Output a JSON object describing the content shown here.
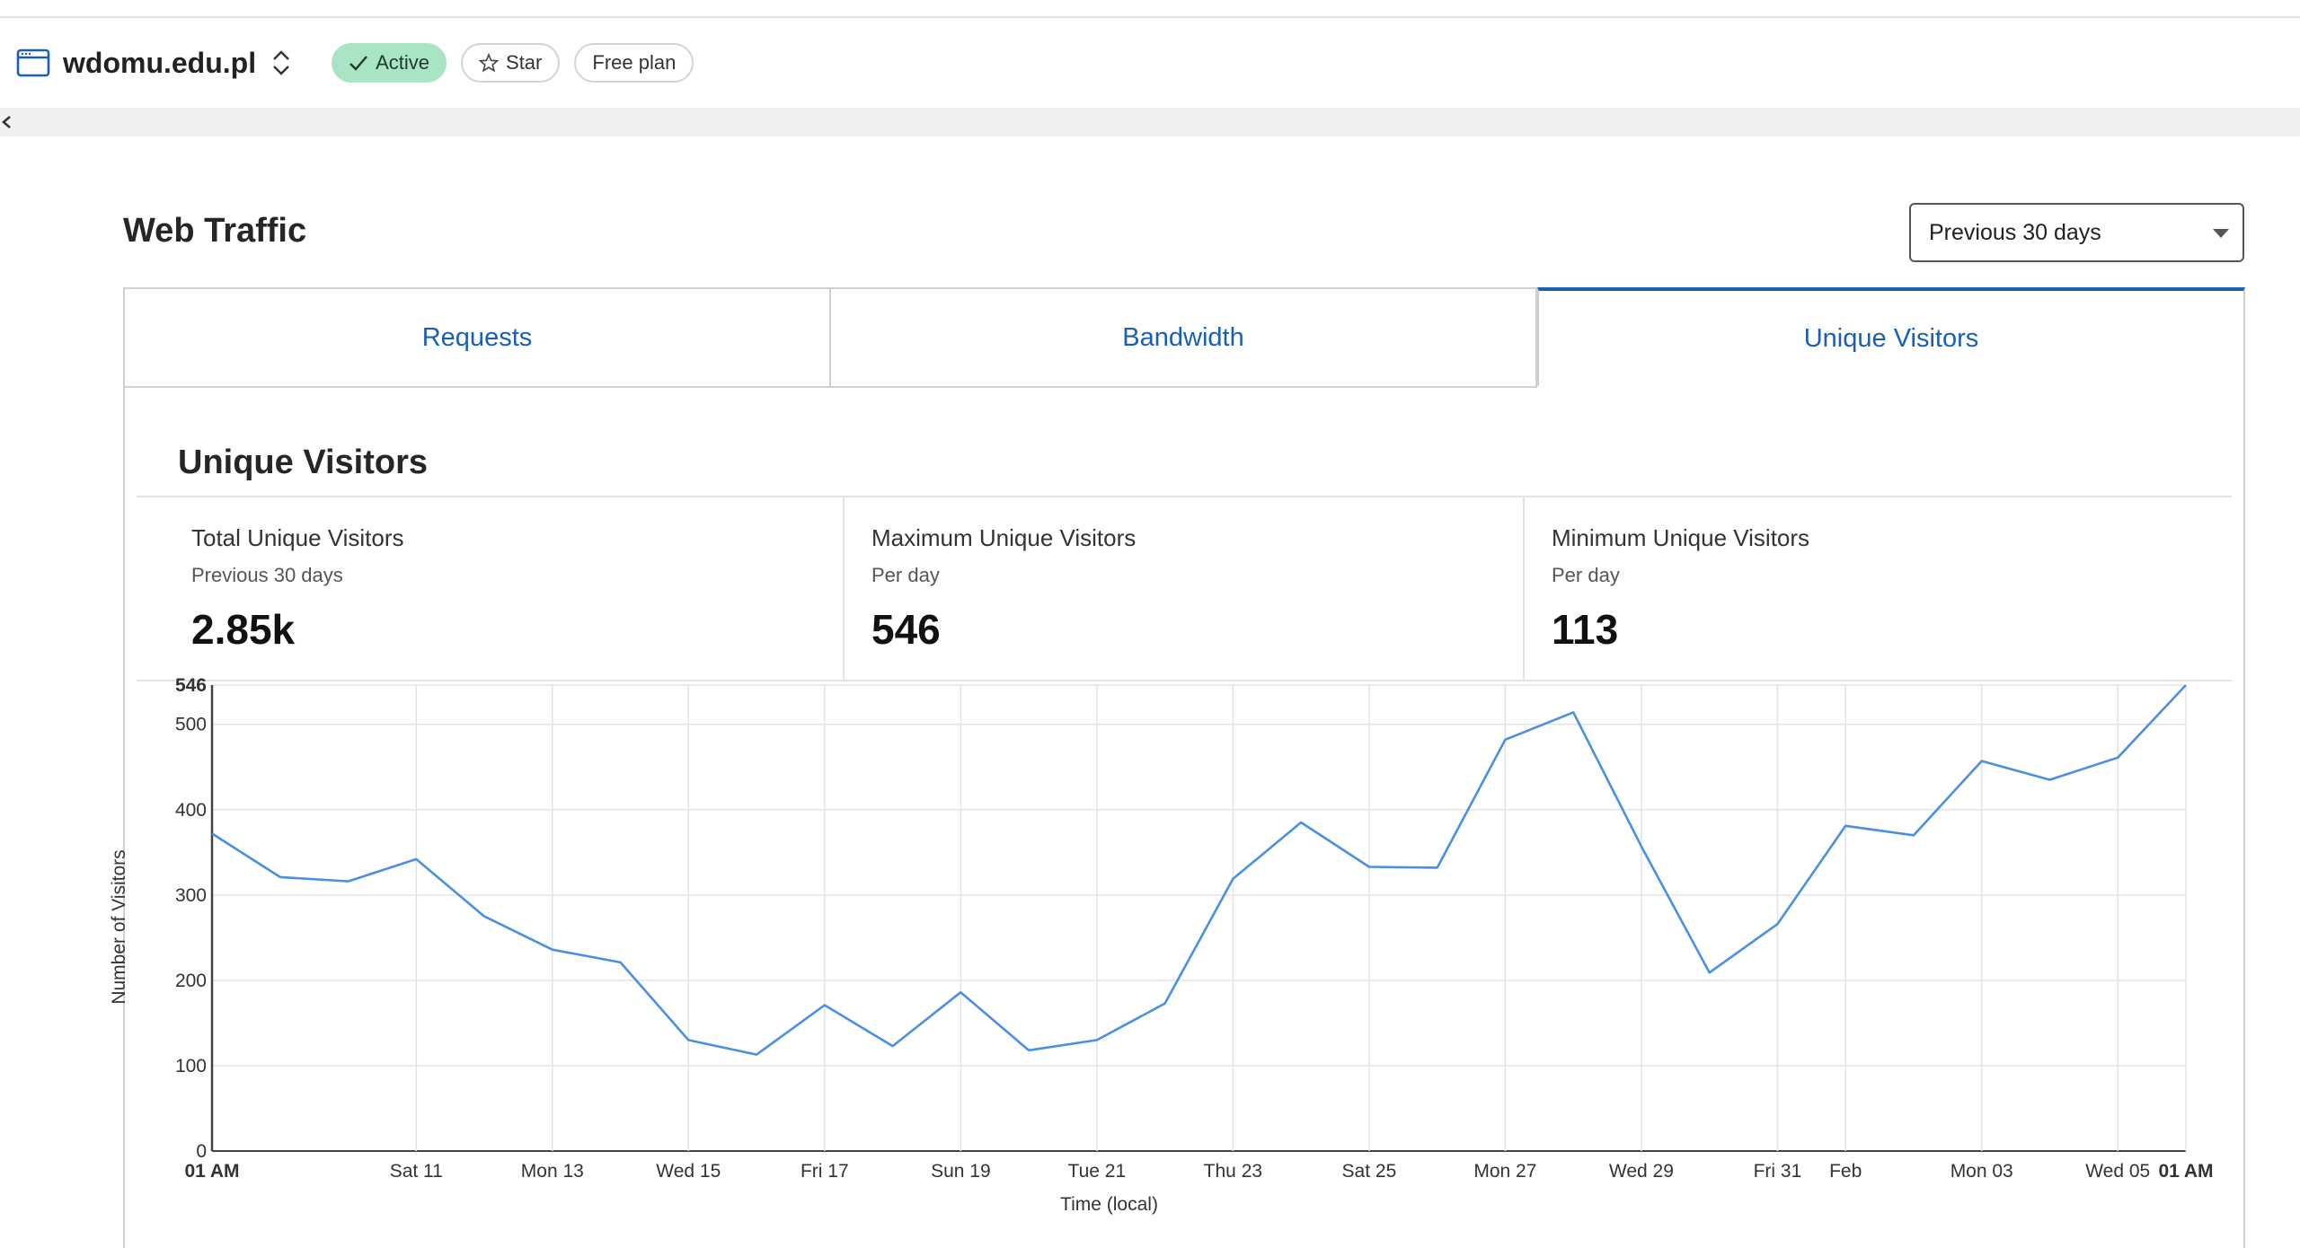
{
  "header": {
    "site_name": "wdomu.edu.pl",
    "status_label": "Active",
    "star_label": "Star",
    "plan_label": "Free plan"
  },
  "section": {
    "title": "Web Traffic",
    "range_select": "Previous 30 days"
  },
  "tabs": [
    {
      "label": "Requests",
      "active": false
    },
    {
      "label": "Bandwidth",
      "active": false
    },
    {
      "label": "Unique Visitors",
      "active": true
    }
  ],
  "panel": {
    "title": "Unique Visitors",
    "stats": [
      {
        "label": "Total Unique Visitors",
        "sub": "Previous 30 days",
        "value": "2.85k"
      },
      {
        "label": "Maximum Unique Visitors",
        "sub": "Per day",
        "value": "546"
      },
      {
        "label": "Minimum Unique Visitors",
        "sub": "Per day",
        "value": "113"
      }
    ]
  },
  "colors": {
    "accent": "#1a5fb4",
    "line": "#4a90e2",
    "active_pill": "#a9e4c4"
  },
  "icons": {
    "site": "browser-window-icon",
    "switcher": "chevron-up-down-icon",
    "active": "check-icon",
    "star": "star-icon",
    "collapse": "chevron-left-icon",
    "dropdown": "caret-down-icon"
  },
  "chart_data": {
    "type": "line",
    "xlabel": "Time (local)",
    "ylabel": "Number of Visitors",
    "ylim": [
      0,
      546
    ],
    "yticks": [
      0,
      100,
      200,
      300,
      400,
      500,
      546
    ],
    "grid": true,
    "x_ticks": [
      {
        "index": 0,
        "label": "01 AM",
        "bold": true
      },
      {
        "index": 3,
        "label": "Sat 11"
      },
      {
        "index": 5,
        "label": "Mon 13"
      },
      {
        "index": 7,
        "label": "Wed 15"
      },
      {
        "index": 9,
        "label": "Fri 17"
      },
      {
        "index": 11,
        "label": "Sun 19"
      },
      {
        "index": 13,
        "label": "Tue 21"
      },
      {
        "index": 15,
        "label": "Thu 23"
      },
      {
        "index": 17,
        "label": "Sat 25"
      },
      {
        "index": 19,
        "label": "Mon 27"
      },
      {
        "index": 21,
        "label": "Wed 29"
      },
      {
        "index": 23,
        "label": "Fri 31"
      },
      {
        "index": 24,
        "label": "Feb"
      },
      {
        "index": 26,
        "label": "Mon 03"
      },
      {
        "index": 28,
        "label": "Wed 05"
      },
      {
        "index": 29,
        "label": "01 AM",
        "bold": true
      }
    ],
    "series": [
      {
        "values": [
          372,
          321,
          316,
          342,
          275,
          236,
          221,
          130,
          113,
          171,
          123,
          186,
          118,
          130,
          173,
          319,
          385,
          333,
          332,
          482,
          514,
          357,
          209,
          266,
          381,
          370,
          457,
          435,
          461,
          546
        ]
      }
    ]
  }
}
